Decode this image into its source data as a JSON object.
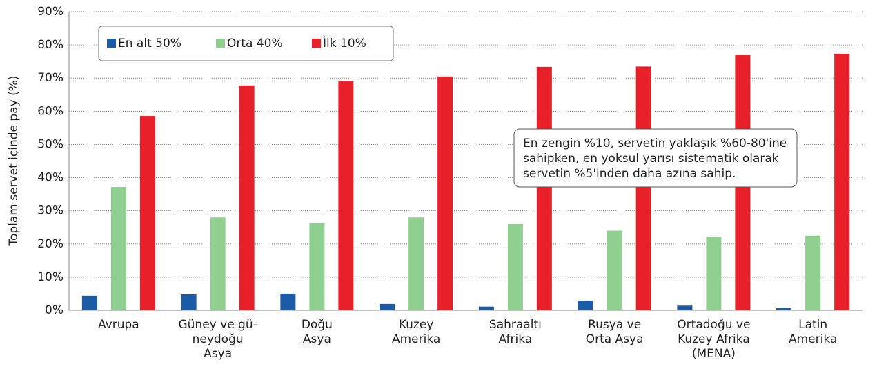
{
  "chart_data": {
    "type": "bar",
    "y_axis_label": "Toplam servet içinde pay (%)",
    "categories": [
      [
        "Avrupa"
      ],
      [
        "Güney ve gü-",
        "neydoğu",
        "Asya"
      ],
      [
        "Doğu",
        "Asya"
      ],
      [
        "Kuzey",
        "Amerika"
      ],
      [
        "Sahraaltı",
        "Afrika"
      ],
      [
        "Rusya ve",
        "Orta Asya"
      ],
      [
        "Ortadoğu ve",
        "Kuzey Afrika",
        "(MENA)"
      ],
      [
        "Latin",
        "Amerika"
      ]
    ],
    "series": [
      {
        "name": "En alt 50%",
        "color": "#1b5ba6",
        "values": [
          4.4,
          4.8,
          5.0,
          1.9,
          1.1,
          2.9,
          1.4,
          0.7
        ]
      },
      {
        "name": "Orta 40%",
        "color": "#8fcf8f",
        "values": [
          37.2,
          28.0,
          26.2,
          28.0,
          26.0,
          24.0,
          22.2,
          22.5
        ]
      },
      {
        "name": "İlk 10%",
        "color": "#e8202a",
        "values": [
          58.6,
          67.8,
          69.2,
          70.5,
          73.4,
          73.5,
          76.9,
          77.3
        ]
      }
    ],
    "ylim": [
      0,
      90
    ],
    "yticks": [
      {
        "value": 0,
        "label": "0%"
      },
      {
        "value": 10,
        "label": "10%"
      },
      {
        "value": 20,
        "label": "20%"
      },
      {
        "value": 30,
        "label": "30%"
      },
      {
        "value": 40,
        "label": "40%"
      },
      {
        "value": 50,
        "label": "50%"
      },
      {
        "value": 60,
        "label": "60%"
      },
      {
        "value": 70,
        "label": "70%"
      },
      {
        "value": 80,
        "label": "80%"
      },
      {
        "value": 90,
        "label": "90%"
      }
    ],
    "grid": true,
    "legend": "top-left",
    "annotation": [
      "En zengin %10, servetin yaklaşık %60-80'ine",
      "sahipken, en yoksul yarısı sistematik olarak",
      "servetin %5'inden daha azına sahip."
    ]
  }
}
